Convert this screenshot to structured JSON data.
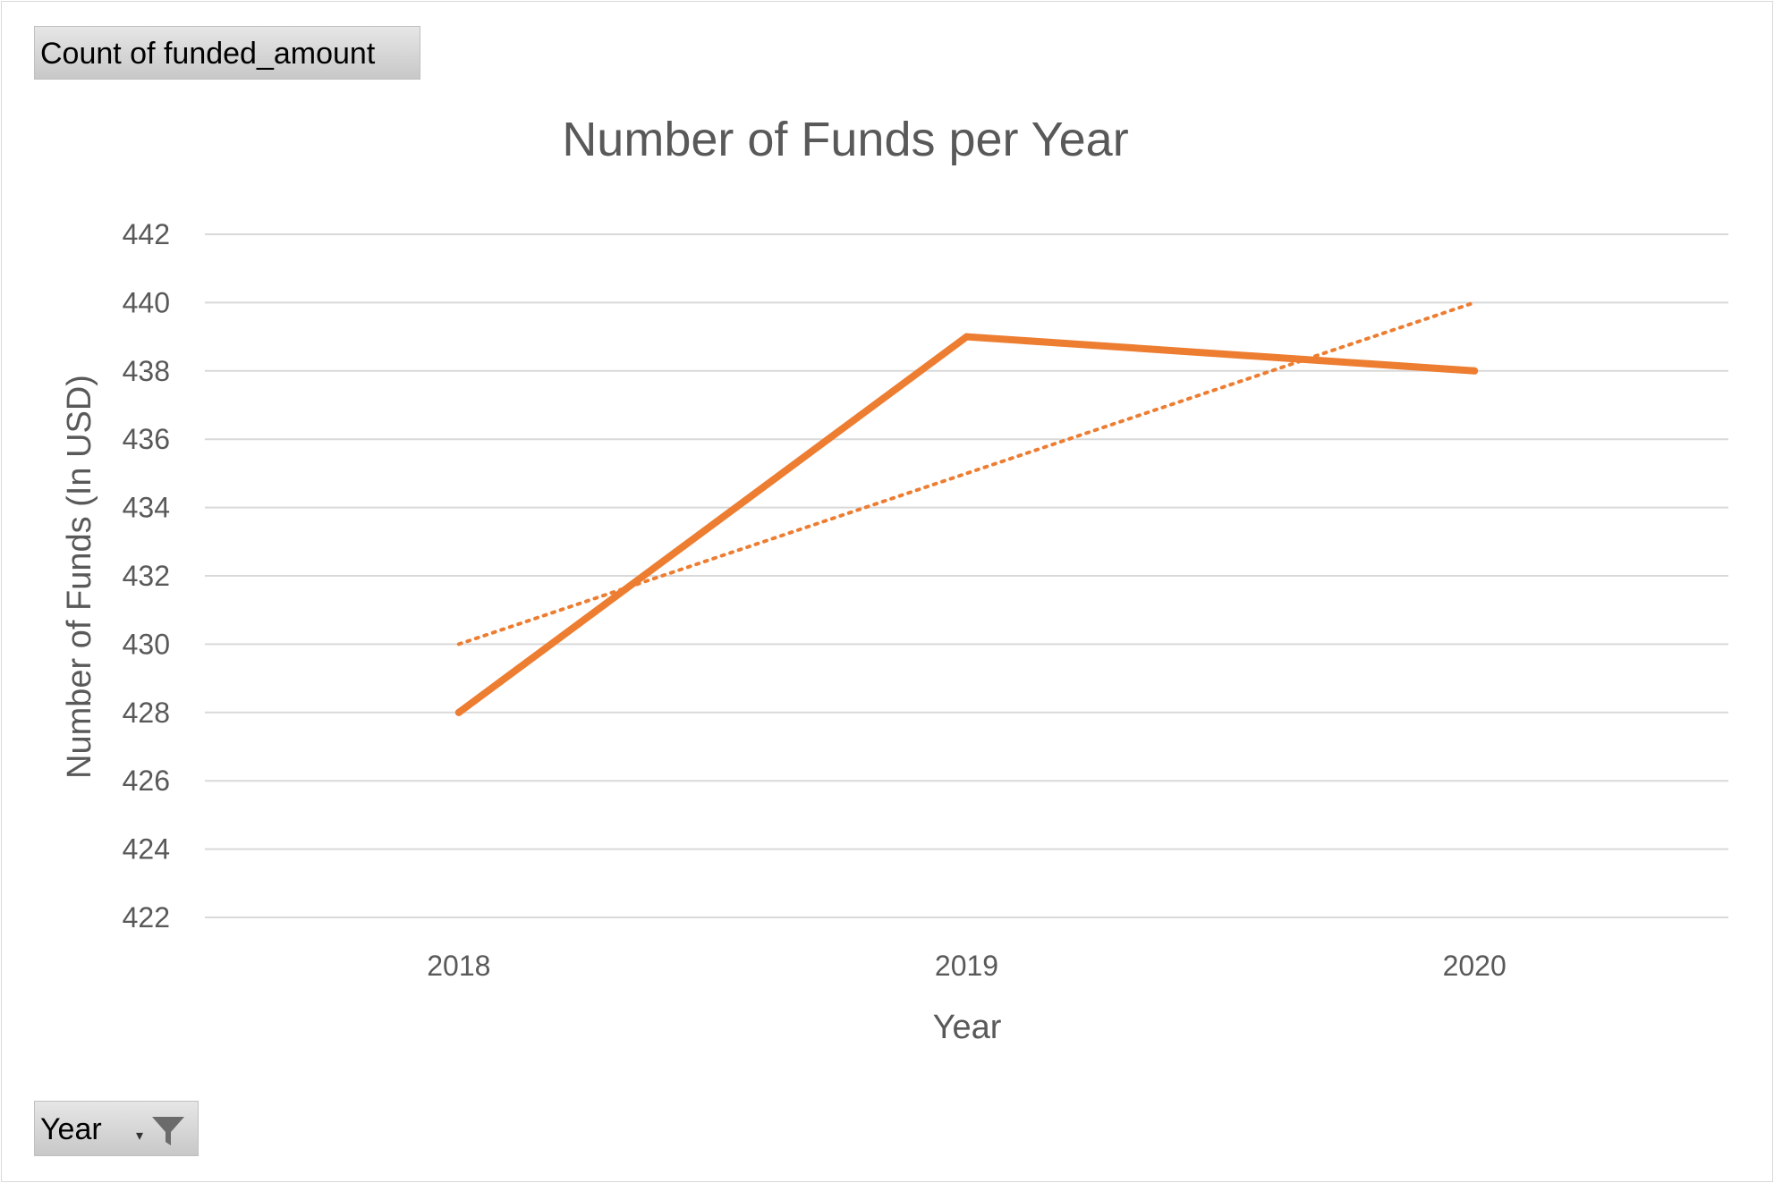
{
  "pivot": {
    "value_field": "Count of funded_amount",
    "axis_field": "Year"
  },
  "icons": {
    "axis_filter": "filter-funnel-icon",
    "axis_dropdown": "dropdown-arrow-icon"
  },
  "colors": {
    "series": "#ED7D31",
    "gridline": "#D9D9D9",
    "text": "#595959"
  },
  "chart_data": {
    "type": "line",
    "title": "Number of Funds per Year",
    "xlabel": "Year",
    "ylabel": "Number of Funds (In USD)",
    "categories": [
      "2018",
      "2019",
      "2020"
    ],
    "series": [
      {
        "values": [
          428,
          439,
          438
        ],
        "style": "solid"
      }
    ],
    "trendline": {
      "type": "linear",
      "style": "dotted",
      "values": [
        430,
        435,
        440
      ]
    },
    "ylim": [
      422,
      442
    ],
    "ytick_step": 2,
    "yticks": [
      "422",
      "424",
      "426",
      "428",
      "430",
      "432",
      "434",
      "436",
      "438",
      "440",
      "442"
    ],
    "grid": true,
    "legend": "none"
  }
}
